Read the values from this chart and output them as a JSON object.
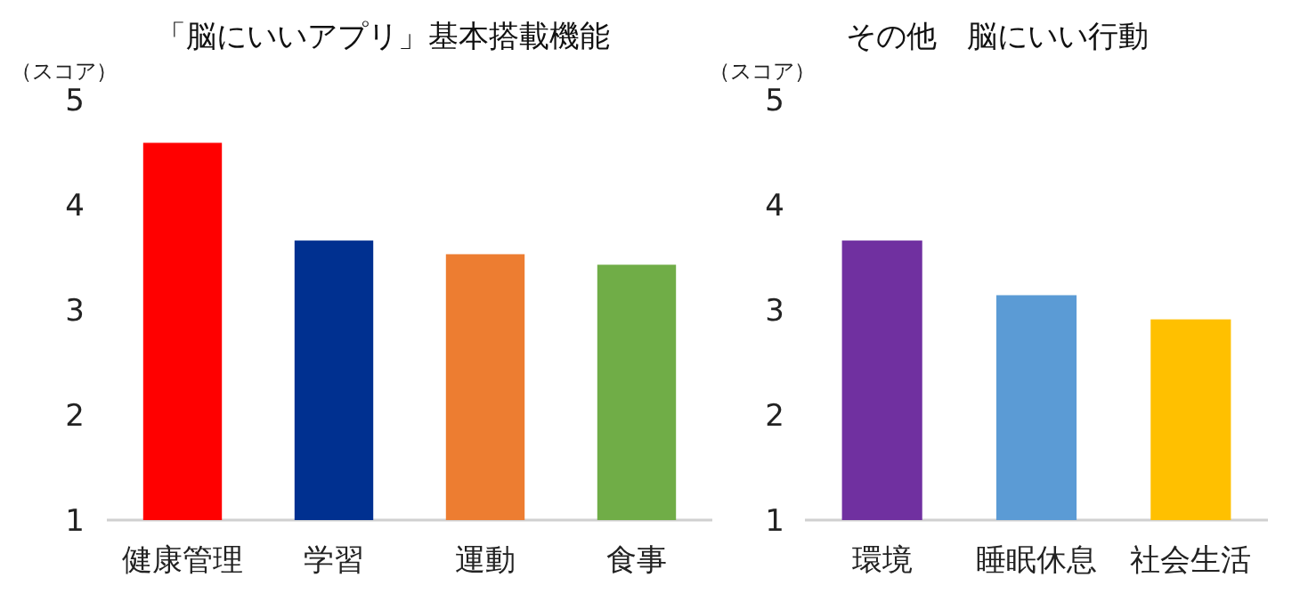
{
  "chart_data": [
    {
      "type": "bar",
      "title": "「脳にいいアプリ」基本搭載機能",
      "ylabel": "（スコア）",
      "categories": [
        "健康管理",
        "学習",
        "運動",
        "食事"
      ],
      "values": [
        4.59,
        3.66,
        3.53,
        3.43
      ],
      "colors": [
        "#ff0000",
        "#003090",
        "#ed7d31",
        "#70ad47"
      ],
      "ylim": [
        1,
        5
      ],
      "yticks": [
        1,
        2,
        3,
        4,
        5
      ]
    },
    {
      "type": "bar",
      "title": "その他　脳にいい行動",
      "ylabel": "（スコア）",
      "categories": [
        "環境",
        "睡眠休息",
        "社会生活"
      ],
      "values": [
        3.66,
        3.14,
        2.91
      ],
      "colors": [
        "#7030a0",
        "#5b9bd5",
        "#ffc000"
      ],
      "ylim": [
        1,
        5
      ],
      "yticks": [
        1,
        2,
        3,
        4,
        5
      ]
    }
  ]
}
